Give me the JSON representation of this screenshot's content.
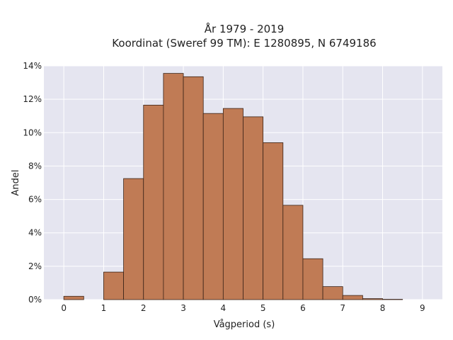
{
  "chart_data": {
    "type": "bar",
    "title_line1": "År 1979 - 2019",
    "title_line2": "Koordinat (Sweref 99 TM): E 1280895, N 6749186",
    "xlabel": "Vågperiod (s)",
    "ylabel": "Andel",
    "xlim": [
      -0.5,
      9.5
    ],
    "ylim": [
      0,
      14
    ],
    "x_ticks": [
      0,
      1,
      2,
      3,
      4,
      5,
      6,
      7,
      8,
      9
    ],
    "x_tick_labels": [
      "0",
      "1",
      "2",
      "3",
      "4",
      "5",
      "6",
      "7",
      "8",
      "9"
    ],
    "y_ticks": [
      0,
      2,
      4,
      6,
      8,
      10,
      12,
      14
    ],
    "y_tick_labels": [
      "0%",
      "2%",
      "4%",
      "6%",
      "8%",
      "10%",
      "12%",
      "14%"
    ],
    "grid": true,
    "bin_width": 0.5,
    "bins": [
      {
        "start": 0.0,
        "value": 0.2
      },
      {
        "start": 1.0,
        "value": 1.65
      },
      {
        "start": 1.5,
        "value": 7.25
      },
      {
        "start": 2.0,
        "value": 11.65
      },
      {
        "start": 2.5,
        "value": 13.55
      },
      {
        "start": 3.0,
        "value": 13.35
      },
      {
        "start": 3.5,
        "value": 11.15
      },
      {
        "start": 4.0,
        "value": 11.45
      },
      {
        "start": 4.5,
        "value": 10.95
      },
      {
        "start": 5.0,
        "value": 9.4
      },
      {
        "start": 5.5,
        "value": 5.65
      },
      {
        "start": 6.0,
        "value": 2.45
      },
      {
        "start": 6.5,
        "value": 0.78
      },
      {
        "start": 7.0,
        "value": 0.25
      },
      {
        "start": 7.5,
        "value": 0.06
      },
      {
        "start": 8.0,
        "value": 0.02
      }
    ],
    "colors": {
      "bar_fill": "#c07b55",
      "bar_stroke": "#3b2418",
      "plot_background": "#e5e5f0",
      "grid": "#ffffff"
    }
  }
}
